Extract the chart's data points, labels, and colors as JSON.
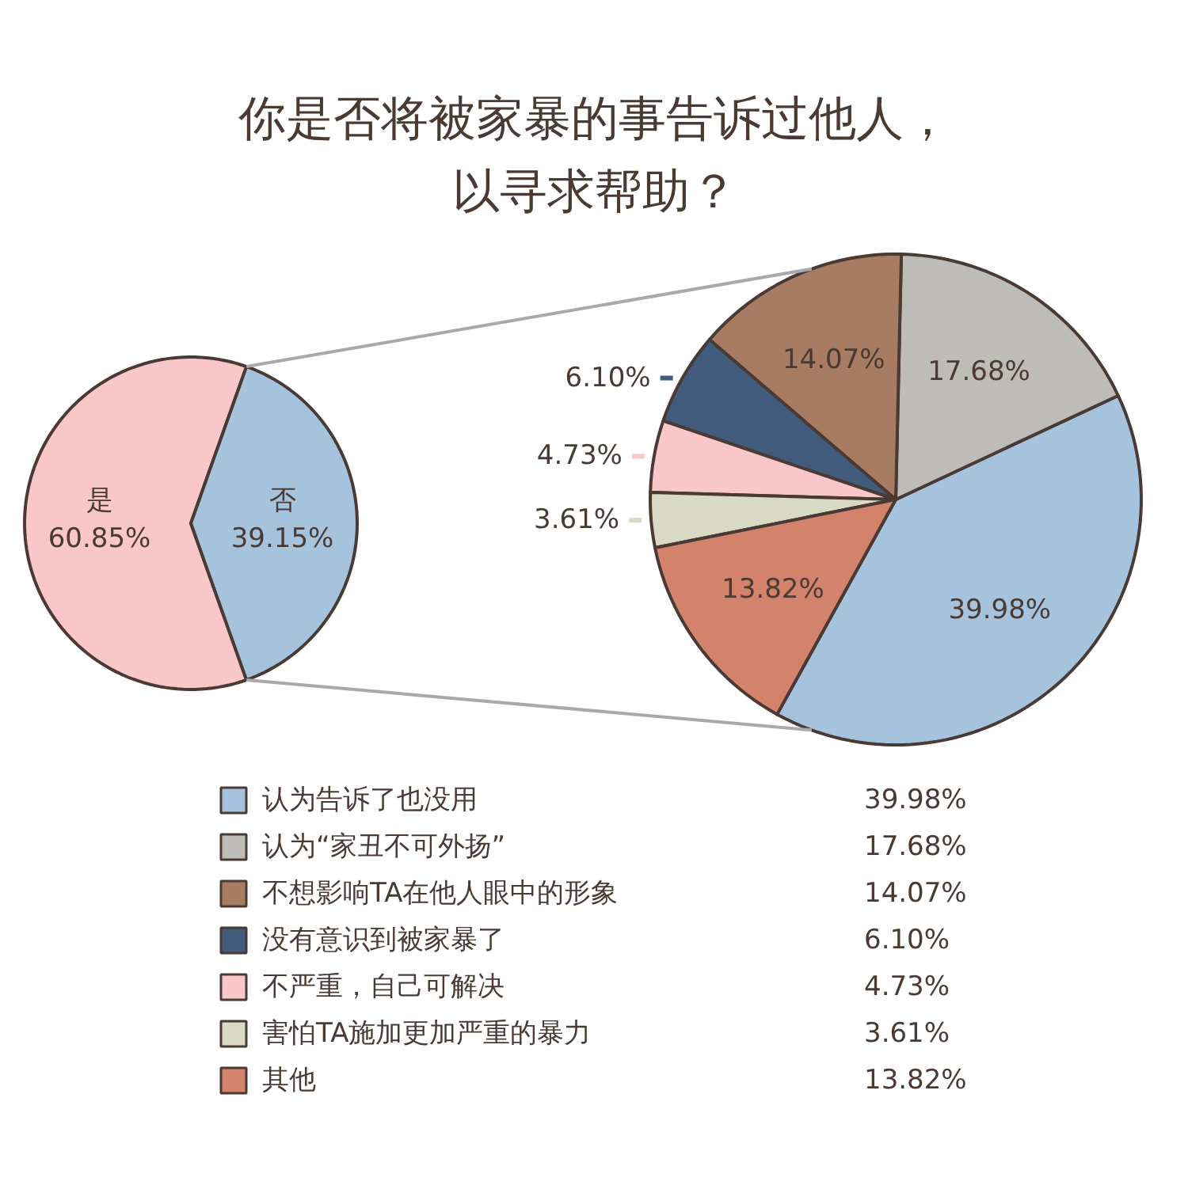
{
  "chart_data": [
    {
      "type": "pie",
      "title": "你是否将被家暴的事告诉过他人，以寻求帮助？",
      "categories": [
        "是",
        "否"
      ],
      "values": [
        60.85,
        39.15
      ],
      "colors": [
        "#f9c6c9",
        "#a6c3de"
      ],
      "value_labels": [
        "60.85%",
        "39.15%"
      ]
    },
    {
      "type": "pie",
      "categories": [
        "认为告诉了也没用",
        "认为“家丑不可外扬”",
        "不想影响TA在他人眼中的形象",
        "没有意识到被家暴了",
        "不严重，自己可解决",
        "害怕TA施加更加严重的暴力",
        "其他"
      ],
      "values": [
        39.98,
        17.68,
        14.07,
        6.1,
        4.73,
        3.61,
        13.82
      ],
      "colors": [
        "#a6c3de",
        "#bdbcb8",
        "#a87c62",
        "#415c7c",
        "#f9c6c9",
        "#d9dac4",
        "#d3836b"
      ],
      "value_labels": [
        "39.98%",
        "17.68%",
        "14.07%",
        "6.10%",
        "4.73%",
        "3.61%",
        "13.82%"
      ],
      "legend": "bottom"
    }
  ]
}
